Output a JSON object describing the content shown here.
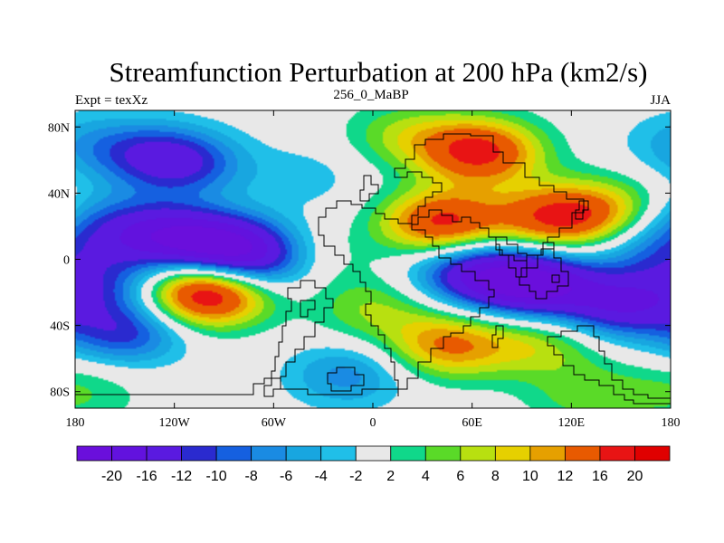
{
  "chart_data": {
    "type": "heatmap",
    "subtype": "filled-contour-map",
    "title": "Streamfunction Perturbation at 200 hPa (km2/s)",
    "left_label": "Expt = texXz",
    "center_label": "256_0_MaBP",
    "right_label": "JJA",
    "x_range": [
      -180,
      180
    ],
    "y_range": [
      -90,
      90
    ],
    "x_ticks": [
      {
        "value": -180,
        "label": "180"
      },
      {
        "value": -120,
        "label": "120W"
      },
      {
        "value": -60,
        "label": "60W"
      },
      {
        "value": 0,
        "label": "0"
      },
      {
        "value": 60,
        "label": "60E"
      },
      {
        "value": 120,
        "label": "120E"
      },
      {
        "value": 180,
        "label": "180"
      }
    ],
    "y_ticks": [
      {
        "value": 80,
        "label": "80N"
      },
      {
        "value": 40,
        "label": "40N"
      },
      {
        "value": 0,
        "label": "0"
      },
      {
        "value": -40,
        "label": "40S"
      },
      {
        "value": -80,
        "label": "80S"
      }
    ],
    "colorbar": {
      "boundaries": [
        -20,
        -16,
        -12,
        -10,
        -8,
        -6,
        -4,
        -2,
        2,
        4,
        6,
        8,
        10,
        12,
        16,
        20
      ],
      "labels": [
        "-20",
        "-16",
        "-12",
        "-10",
        "-8",
        "-6",
        "-4",
        "-2",
        "2",
        "4",
        "6",
        "8",
        "10",
        "12",
        "16",
        "20"
      ],
      "colors": [
        "#6A0FDC",
        "#6212DE",
        "#5A1AE0",
        "#2A2ACF",
        "#1560E0",
        "#1A8BE3",
        "#18A6E0",
        "#20BFE8",
        "#E8E8E8",
        "#10D88A",
        "#5ADA28",
        "#B8E010",
        "#E6D000",
        "#E6A000",
        "#E85A00",
        "#E81414",
        "#E00000"
      ]
    },
    "anomalies": [
      {
        "lon": -100,
        "lat": -20,
        "value": 22
      },
      {
        "lon": -132,
        "lat": 15,
        "value": -14
      },
      {
        "lon": -92,
        "lat": 8,
        "value": -18
      },
      {
        "lon": -65,
        "lat": -2,
        "value": -12
      },
      {
        "lon": -115,
        "lat": 58,
        "value": -11
      },
      {
        "lon": -140,
        "lat": 65,
        "value": -6
      },
      {
        "lon": -175,
        "lat": 70,
        "value": -4
      },
      {
        "lon": -150,
        "lat": -44,
        "value": -11
      },
      {
        "lon": -165,
        "lat": -15,
        "value": -8
      },
      {
        "lon": -176,
        "lat": 25,
        "value": -5
      },
      {
        "lon": 98,
        "lat": -15,
        "value": -20
      },
      {
        "lon": 60,
        "lat": -8,
        "value": -14
      },
      {
        "lon": 150,
        "lat": -28,
        "value": -14
      },
      {
        "lon": 170,
        "lat": 5,
        "value": -6
      },
      {
        "lon": 65,
        "lat": 65,
        "value": 17
      },
      {
        "lon": 42,
        "lat": 22,
        "value": 17
      },
      {
        "lon": 110,
        "lat": 25,
        "value": 15
      },
      {
        "lon": 145,
        "lat": 30,
        "value": 8
      },
      {
        "lon": 20,
        "lat": 75,
        "value": 6
      },
      {
        "lon": -40,
        "lat": 0,
        "value": 5
      },
      {
        "lon": 45,
        "lat": -52,
        "value": 12
      },
      {
        "lon": 0,
        "lat": -30,
        "value": 6
      },
      {
        "lon": 100,
        "lat": -52,
        "value": 7
      },
      {
        "lon": -15,
        "lat": -70,
        "value": -7
      },
      {
        "lon": 130,
        "lat": -82,
        "value": 5
      },
      {
        "lon": -175,
        "lat": -80,
        "value": 4
      },
      {
        "lon": -40,
        "lat": 50,
        "value": -3
      }
    ]
  }
}
